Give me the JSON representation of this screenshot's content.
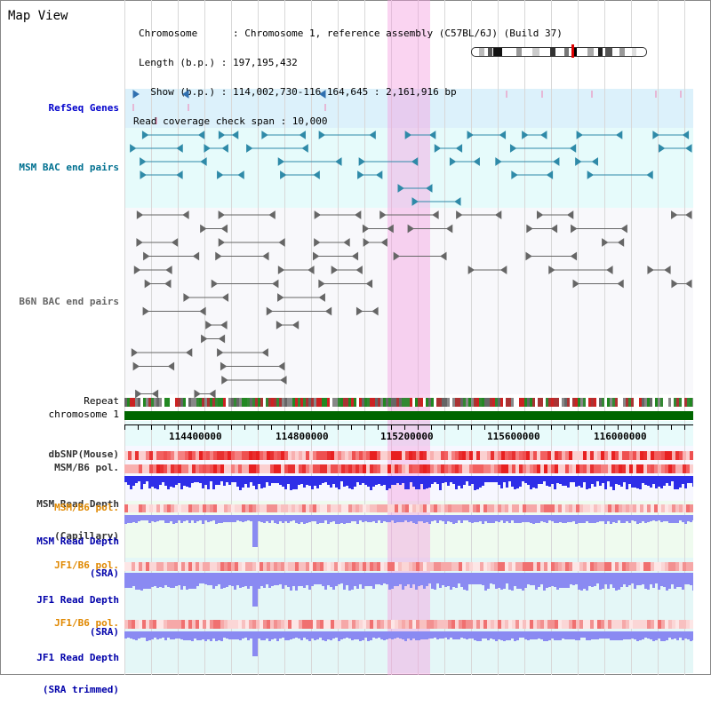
{
  "app": {
    "title": "Map View"
  },
  "header": {
    "chromosome_line": "Chromosome      : Chromosome 1, reference assembly (C57BL/6J) (Build 37)",
    "length_line": "Length (b.p.) : 197,195,432",
    "show_line": "  Show (b.p.) : 114,002,730-116,164,645 : 2,161,916 bp",
    "coverage_line": "Read coverage check span : 10,000"
  },
  "tracks": {
    "refseq": "RefSeq Genes",
    "msm_bac": "MSM BAC end pairs",
    "b6n_bac": "B6N BAC end pairs",
    "repeat": "Repeat",
    "chromosome": "chromosome 1",
    "dbsnp": "dbSNP(Mouse)",
    "msm_b6_pol": "MSM/B6 pol.",
    "msm_depth_cap_1": "MSM Read Depth",
    "msm_depth_cap_2": "(Capillary)",
    "msm_b6_pol_2": "MSM/B6 pol.",
    "msm_depth_sra_1": "MSM Read Depth",
    "msm_depth_sra_2": "(SRA)",
    "jf1_b6_pol": "JF1/B6 pol.",
    "jf1_depth_sra_1": "JF1 Read Depth",
    "jf1_depth_sra_2": "(SRA)",
    "jf1_b6_pol_2": "JF1/B6 pol.",
    "jf1_depth_trim_1": "JF1 Read Depth",
    "jf1_depth_trim_2": "(SRA trimmed)"
  },
  "axis": {
    "ticks": [
      "114400000",
      "114800000",
      "115200000",
      "115600000",
      "116000000"
    ]
  },
  "colors": {
    "refseq_bg": "#dcf1fb",
    "msm_bac_bg": "#e6fbfb",
    "b6n_bg": "#f7f7f9",
    "chromosome": "#006600",
    "depth_blue": "#2e2ee8",
    "depth_light_blue": "#8a8af2",
    "pol_red": "#f05050",
    "highlight": "#f5a0e1"
  },
  "icons": [
    "forward-arrow-icon",
    "reverse-arrow-icon"
  ]
}
